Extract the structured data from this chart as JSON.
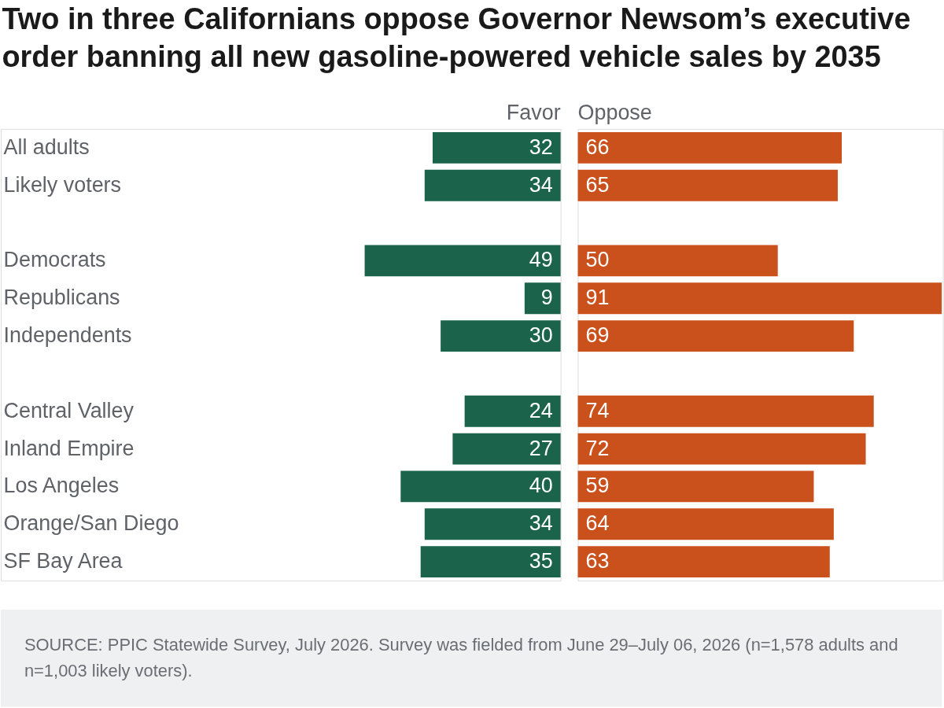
{
  "chart_data": [
    {
      "type": "bar",
      "orientation": "horizontal",
      "title": "Two in three Californians oppose Governor Newsom’s executive order banning all new gasoline-powered vehicle sales by 2035",
      "categories": [
        "All adults",
        "Likely voters",
        null,
        "Democrats",
        "Republicans",
        "Independents",
        null,
        "Central Valley",
        "Inland Empire",
        "Los Angeles",
        "Orange/San Diego",
        "SF Bay Area"
      ],
      "series": [
        {
          "name": "Favor",
          "color": "#1b634b",
          "values": [
            32,
            34,
            null,
            49,
            9,
            30,
            null,
            24,
            27,
            40,
            34,
            35
          ]
        }
      ],
      "xlim": [
        140,
        0
      ],
      "data_labels": true,
      "tick_labels": "y",
      "annotations": [
        "SOURCE: PPIC Statewide Survey, July 2026. Survey was fielded from June 29–July 06, 2026 (n=1,578 adults and n=1,003 likely voters)."
      ]
    },
    {
      "type": "bar",
      "orientation": "horizontal",
      "series": [
        {
          "name": "Oppose",
          "color": "#ca501c",
          "values": [
            66,
            65,
            null,
            50,
            91,
            69,
            null,
            74,
            72,
            59,
            64,
            63
          ]
        }
      ],
      "xlim": [
        0,
        91.3
      ],
      "data_labels": true,
      "tick_labels": false
    }
  ]
}
